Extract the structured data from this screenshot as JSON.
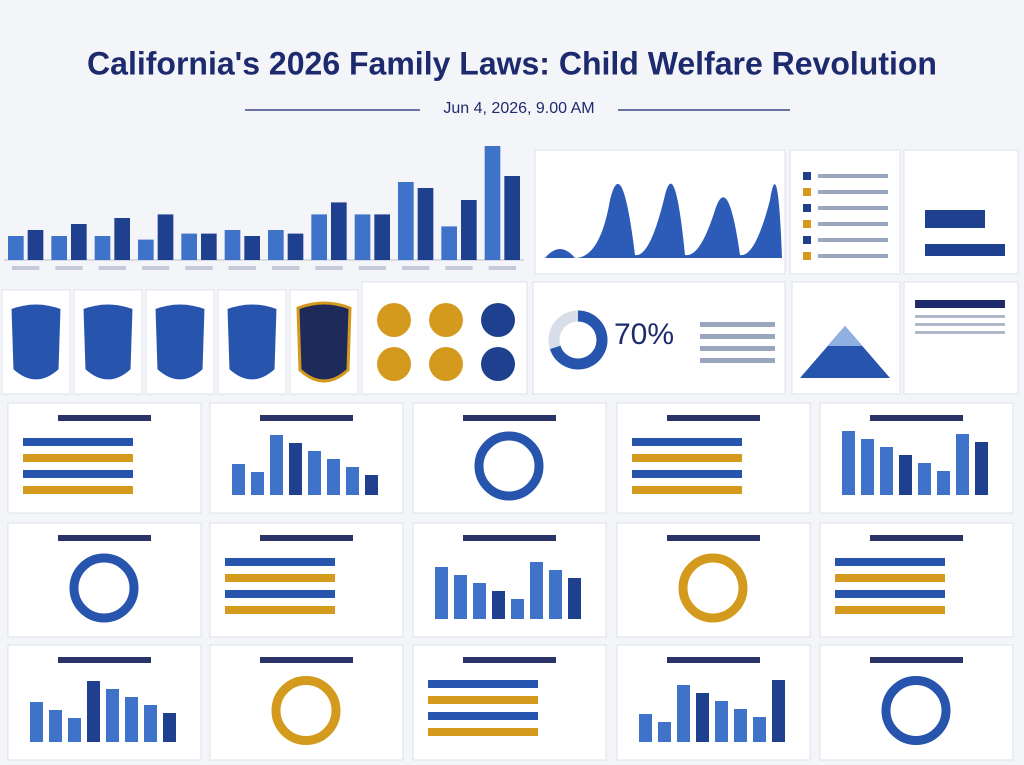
{
  "header": {
    "title": "California's 2026 Family Laws: Child Welfare Revolution",
    "date": "Jun 4, 2026, 9.00 AM"
  },
  "chart_data": {
    "type": "bar",
    "series": [
      {
        "color": "#3f73c9",
        "values": [
          20,
          20,
          20,
          17,
          22,
          25,
          25,
          38,
          38,
          65,
          28,
          95
        ]
      },
      {
        "color": "#1f3f8f",
        "values": [
          25,
          30,
          35,
          38,
          22,
          20,
          22,
          48,
          38,
          60,
          50,
          70
        ]
      }
    ]
  },
  "donut": {
    "value": 70,
    "label": "70%"
  }
}
